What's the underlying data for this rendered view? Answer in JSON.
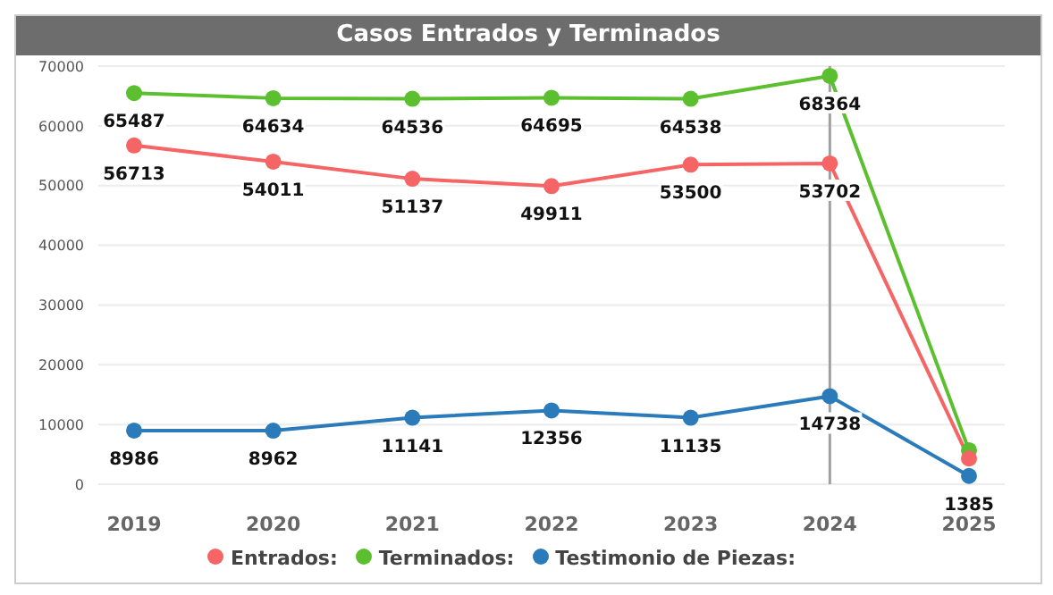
{
  "chart_data": {
    "type": "line",
    "title": "Casos Entrados y Terminados",
    "categories": [
      "2019",
      "2020",
      "2021",
      "2022",
      "2023",
      "2024",
      "2025"
    ],
    "series": [
      {
        "name": "Testimonio de Piezas:",
        "color": "#2b7bba",
        "values": [
          8986,
          8962,
          11141,
          12356,
          11135,
          14738,
          1385
        ],
        "value_labels": [
          "8986",
          "8962",
          "11141",
          "12356",
          "11135",
          "14738",
          "1385"
        ]
      },
      {
        "name": "Terminados:",
        "color": "#5cbf2f",
        "values": [
          65487,
          64634,
          64536,
          64695,
          64538,
          68364,
          5700
        ],
        "value_labels": [
          "65487",
          "64634",
          "64536",
          "64695",
          "64538",
          "68364",
          null
        ]
      },
      {
        "name": "Entrados:",
        "color": "#f56565",
        "values": [
          56713,
          54011,
          51137,
          49911,
          53500,
          53702,
          4300
        ],
        "value_labels": [
          "56713",
          "54011",
          "51137",
          "49911",
          "53500",
          "53702",
          null
        ]
      }
    ],
    "ylim": [
      0,
      70000
    ],
    "yticks": [
      0,
      10000,
      20000,
      30000,
      40000,
      50000,
      60000,
      70000
    ],
    "grid": "y",
    "legend": "bottom",
    "marker": "circle",
    "line_style": "solid",
    "ref_lines": [
      {
        "axis": "x",
        "value": "2024",
        "color": "#a0a0a0"
      }
    ]
  }
}
